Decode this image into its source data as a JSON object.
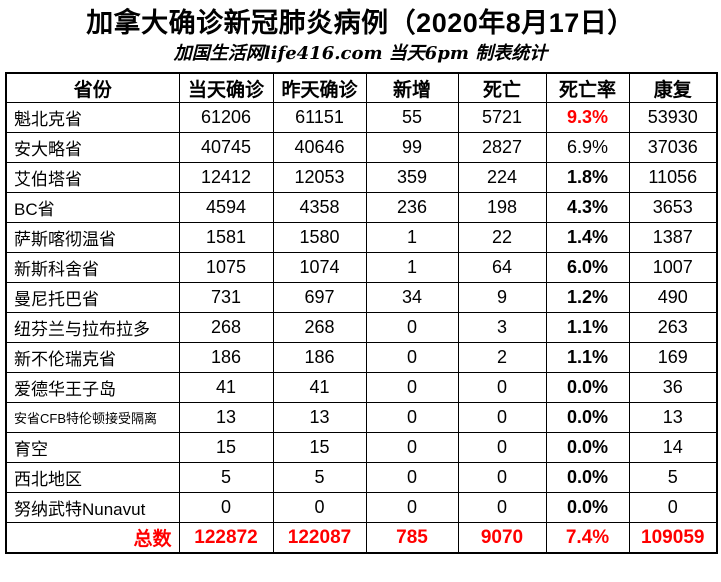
{
  "title": "加拿大确诊新冠肺炎病例（2020年8月17日）",
  "subtitle": "加国生活网life416.com 当天6pm 制表统计",
  "colors": {
    "accent_red": "#ff0000",
    "border": "#000000",
    "background": "#ffffff"
  },
  "chart_data": {
    "type": "table",
    "title": "加拿大确诊新冠肺炎病例（2020年8月17日）",
    "subtitle": "加国生活网life416.com 当天6pm 制表统计",
    "columns": [
      "省份",
      "当天确诊",
      "昨天确诊",
      "新增",
      "死亡",
      "死亡率",
      "康复"
    ],
    "rows": [
      {
        "province": "魁北克省",
        "today": "61206",
        "yesterday": "61151",
        "added": "55",
        "deaths": "5721",
        "rate": "9.3%",
        "recovered": "53930",
        "rate_style": "red"
      },
      {
        "province": "安大略省",
        "today": "40745",
        "yesterday": "40646",
        "added": "99",
        "deaths": "2827",
        "rate": "6.9%",
        "recovered": "37036",
        "rate_style": "normal"
      },
      {
        "province": "艾伯塔省",
        "today": "12412",
        "yesterday": "12053",
        "added": "359",
        "deaths": "224",
        "rate": "1.8%",
        "recovered": "11056",
        "rate_style": "bold"
      },
      {
        "province": "BC省",
        "today": "4594",
        "yesterday": "4358",
        "added": "236",
        "deaths": "198",
        "rate": "4.3%",
        "recovered": "3653",
        "rate_style": "bold"
      },
      {
        "province": "萨斯喀彻温省",
        "today": "1581",
        "yesterday": "1580",
        "added": "1",
        "deaths": "22",
        "rate": "1.4%",
        "recovered": "1387",
        "rate_style": "bold"
      },
      {
        "province": "新斯科舍省",
        "today": "1075",
        "yesterday": "1074",
        "added": "1",
        "deaths": "64",
        "rate": "6.0%",
        "recovered": "1007",
        "rate_style": "bold"
      },
      {
        "province": "曼尼托巴省",
        "today": "731",
        "yesterday": "697",
        "added": "34",
        "deaths": "9",
        "rate": "1.2%",
        "recovered": "490",
        "rate_style": "bold"
      },
      {
        "province": "纽芬兰与拉布拉多",
        "today": "268",
        "yesterday": "268",
        "added": "0",
        "deaths": "3",
        "rate": "1.1%",
        "recovered": "263",
        "rate_style": "bold"
      },
      {
        "province": "新不伦瑞克省",
        "today": "186",
        "yesterday": "186",
        "added": "0",
        "deaths": "2",
        "rate": "1.1%",
        "recovered": "169",
        "rate_style": "bold"
      },
      {
        "province": "爱德华王子岛",
        "today": "41",
        "yesterday": "41",
        "added": "0",
        "deaths": "0",
        "rate": "0.0%",
        "recovered": "36",
        "rate_style": "bold"
      },
      {
        "province": "安省CFB特伦顿接受隔离",
        "today": "13",
        "yesterday": "13",
        "added": "0",
        "deaths": "0",
        "rate": "0.0%",
        "recovered": "13",
        "rate_style": "bold",
        "small_name": true
      },
      {
        "province": "育空",
        "today": "15",
        "yesterday": "15",
        "added": "0",
        "deaths": "0",
        "rate": "0.0%",
        "recovered": "14",
        "rate_style": "bold"
      },
      {
        "province": "西北地区",
        "today": "5",
        "yesterday": "5",
        "added": "0",
        "deaths": "0",
        "rate": "0.0%",
        "recovered": "5",
        "rate_style": "bold"
      },
      {
        "province": "努纳武特Nunavut",
        "today": "0",
        "yesterday": "0",
        "added": "0",
        "deaths": "0",
        "rate": "0.0%",
        "recovered": "0",
        "rate_style": "bold"
      }
    ],
    "total": {
      "label": "总数",
      "today": "122872",
      "yesterday": "122087",
      "added": "785",
      "deaths": "9070",
      "rate": "7.4%",
      "recovered": "109059"
    }
  }
}
